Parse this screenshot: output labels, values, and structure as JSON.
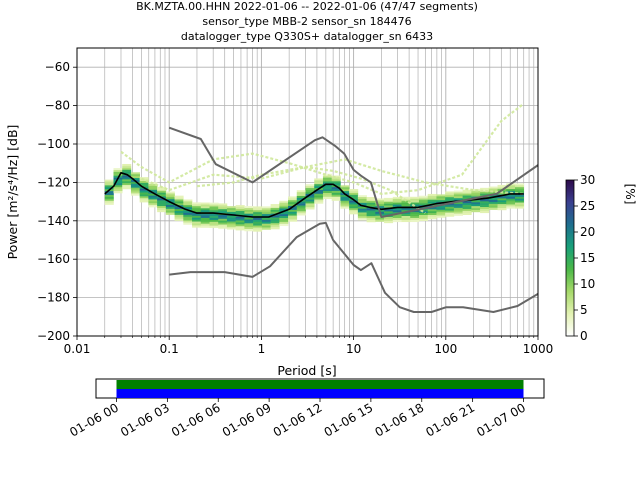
{
  "chart_data": [
    {
      "type": "heatmap",
      "title_lines": [
        "BK.MZTA.00.HHN   2022-01-06 -- 2022-01-06  (47/47 segments)",
        "sensor_type MBB-2 sensor_sn 184476",
        "datalogger_type Q330S+ datalogger_sn 6433"
      ],
      "xlabel": "Period [s]",
      "ylabel": "Power [m²/s⁴/Hz] [dB]",
      "xscale": "log",
      "xlim": [
        0.01,
        1000
      ],
      "ylim": [
        -200,
        -50
      ],
      "x_ticks": [
        {
          "value": 0.01,
          "label": "0.01"
        },
        {
          "value": 0.1,
          "label": "0.1"
        },
        {
          "value": 1,
          "label": "1"
        },
        {
          "value": 10,
          "label": "10"
        },
        {
          "value": 100,
          "label": "100"
        },
        {
          "value": 1000,
          "label": "1000"
        }
      ],
      "y_ticks": [
        {
          "value": -60,
          "label": "−60"
        },
        {
          "value": -80,
          "label": "−80"
        },
        {
          "value": -100,
          "label": "−100"
        },
        {
          "value": -120,
          "label": "−120"
        },
        {
          "value": -140,
          "label": "−140"
        },
        {
          "value": -160,
          "label": "−160"
        },
        {
          "value": -180,
          "label": "−180"
        },
        {
          "value": -200,
          "label": "−200"
        }
      ],
      "grid": true,
      "colorbar": {
        "label": "[%]",
        "range": [
          0,
          30
        ],
        "ticks": [
          {
            "value": 0,
            "label": "0"
          },
          {
            "value": 5,
            "label": "5"
          },
          {
            "value": 10,
            "label": "10"
          },
          {
            "value": 15,
            "label": "15"
          },
          {
            "value": 20,
            "label": "20"
          },
          {
            "value": 25,
            "label": "25"
          },
          {
            "value": 30,
            "label": "30"
          }
        ],
        "colors": [
          "#ffffff",
          "#e3f2b3",
          "#a6d96a",
          "#4bb848",
          "#19a07a",
          "#1f6f8f",
          "#3a3f8f",
          "#2d0a4a"
        ]
      },
      "series": [
        {
          "name": "",
          "style": "mean",
          "color": "#000000",
          "x": [
            0.02,
            0.025,
            0.03,
            0.035,
            0.04,
            0.05,
            0.07,
            0.1,
            0.15,
            0.2,
            0.3,
            0.5,
            0.8,
            1.2,
            2,
            3,
            4,
            5,
            6,
            7,
            8,
            10,
            12,
            15,
            20,
            30,
            50,
            80,
            120,
            200,
            300,
            500,
            700
          ],
          "y": [
            -126,
            -122,
            -115,
            -116,
            -118,
            -122,
            -126,
            -130,
            -134,
            -136,
            -136,
            -137,
            -138,
            -138,
            -134,
            -128,
            -124,
            -121,
            -121,
            -123,
            -126,
            -129,
            -132,
            -133,
            -134,
            -133,
            -133,
            -131,
            -130,
            -129,
            -128,
            -126,
            -126
          ]
        },
        {
          "name": "",
          "style": "noise-model-high",
          "color": "#666666",
          "x": [
            0.1,
            0.22,
            0.32,
            0.8,
            3.8,
            4.6,
            6.3,
            7.9,
            10,
            12,
            15.4,
            20,
            354.8,
            1000
          ],
          "y": [
            -91.5,
            -97.4,
            -110.5,
            -120,
            -98,
            -96.5,
            -101,
            -105,
            -113.5,
            -116.5,
            -120,
            -138,
            -126,
            -111
          ]
        },
        {
          "name": "",
          "style": "noise-model-low",
          "color": "#666666",
          "x": [
            0.1,
            0.17,
            0.4,
            0.8,
            1.24,
            2.4,
            4.3,
            5,
            6,
            10,
            12,
            15.6,
            21.9,
            31.6,
            45,
            70,
            101,
            154,
            328,
            600,
            1000
          ],
          "y": [
            -168,
            -166.7,
            -166.7,
            -169.2,
            -163.7,
            -148.6,
            -141.5,
            -141.1,
            -150,
            -163,
            -165.7,
            -162.1,
            -177.5,
            -185,
            -187.5,
            -187.5,
            -185,
            -185,
            -187.5,
            -184.4,
            -178
          ]
        }
      ],
      "faint_traces": [
        {
          "x": [
            0.03,
            0.05,
            0.1,
            0.3,
            0.8,
            2,
            5,
            10,
            20,
            50,
            150,
            400,
            700
          ],
          "y": [
            -104,
            -112,
            -120,
            -108,
            -105,
            -110,
            -116,
            -120,
            -126,
            -124,
            -116,
            -88,
            -79
          ]
        },
        {
          "x": [
            0.05,
            0.1,
            0.3,
            1,
            3,
            8,
            20,
            60,
            200,
            700
          ],
          "y": [
            -118,
            -124,
            -116,
            -118,
            -112,
            -108,
            -114,
            -120,
            -124,
            -126
          ]
        },
        {
          "x": [
            0.2,
            0.5,
            1,
            3,
            6,
            12,
            25,
            60
          ],
          "y": [
            -122,
            -120,
            -116,
            -112,
            -114,
            -118,
            -124,
            -136
          ]
        }
      ]
    },
    {
      "type": "timeline",
      "xlim": [
        "2022-01-06 00:00",
        "2022-01-07 00:00"
      ],
      "x_ticks": [
        "01-06 00",
        "01-06 03",
        "01-06 06",
        "01-06 09",
        "01-06 12",
        "01-06 15",
        "01-06 18",
        "01-06 21",
        "01-07 00"
      ],
      "bars": [
        {
          "name": "",
          "color": "#008000",
          "start": "2022-01-06 00:00",
          "end": "2022-01-07 00:00"
        },
        {
          "name": "",
          "color": "#0000ff",
          "start": "2022-01-06 00:00",
          "end": "2022-01-07 00:00"
        }
      ]
    }
  ]
}
